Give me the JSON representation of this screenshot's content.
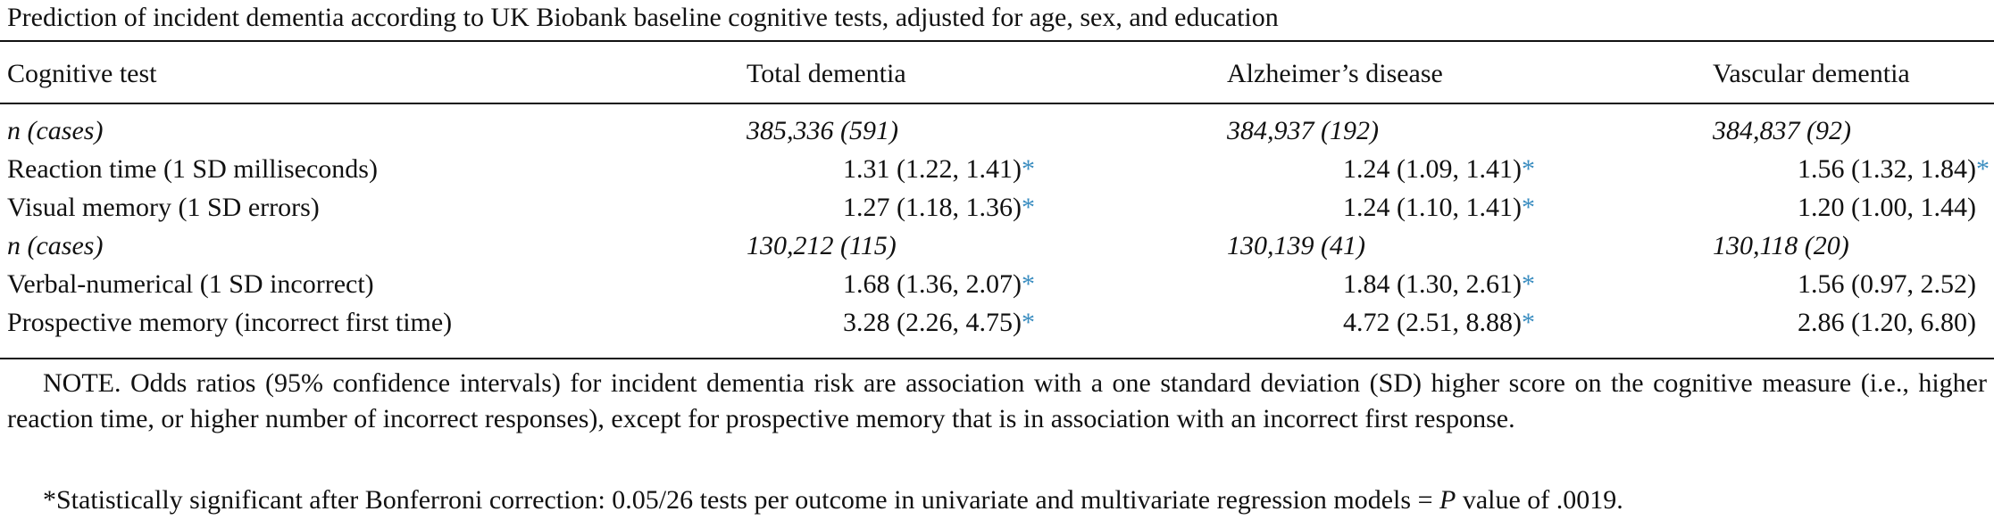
{
  "caption": "Prediction of incident dementia according to UK Biobank baseline cognitive tests, adjusted for age, sex, and education",
  "columns": {
    "test": "Cognitive test",
    "total": "Total dementia",
    "alzheimers": "Alzheimer’s disease",
    "vascular": "Vascular dementia"
  },
  "significance_marker": "*",
  "blocks": [
    {
      "n_label": "n (cases)",
      "n_total": "385,336 (591)",
      "n_alzheimers": "384,937 (192)",
      "n_vascular": "384,837 (92)",
      "rows": [
        {
          "test": "Reaction time (1 SD milliseconds)",
          "total": "1.31 (1.22, 1.41)",
          "alzheimers": "1.24 (1.09, 1.41)",
          "vascular": "1.56 (1.32, 1.84)"
        },
        {
          "test": "Visual memory (1 SD errors)",
          "total": "1.27 (1.18, 1.36)",
          "alzheimers": "1.24 (1.10, 1.41)",
          "vascular": "1.20 (1.00, 1.44)"
        }
      ]
    },
    {
      "n_label": "n (cases)",
      "n_total": "130,212 (115)",
      "n_alzheimers": "130,139 (41)",
      "n_vascular": "130,118 (20)",
      "rows": [
        {
          "test": "Verbal-numerical (1 SD incorrect)",
          "total": "1.68 (1.36, 2.07)",
          "alzheimers": "1.84 (1.30, 2.61)",
          "vascular": "1.56 (0.97, 2.52)"
        },
        {
          "test": "Prospective memory (incorrect first time)",
          "total": "3.28 (2.26, 4.75)",
          "alzheimers": "4.72 (2.51, 8.88)",
          "vascular": "2.86 (1.20, 6.80)"
        }
      ]
    }
  ],
  "note": "NOTE. Odds ratios (95% confidence intervals) for incident dementia risk are association with a one standard deviation (SD) higher score on the cognitive measure (i.e., higher reaction time, or higher number of incorrect responses), except for prospective memory that is in association with an incorrect first response.",
  "footnote_prefix": "*Statistically significant after Bonferroni correction: 0.05/26 tests per outcome in univariate and multivariate regression models = ",
  "footnote_italic": "P",
  "footnote_suffix": " value of .0019.",
  "colors": {
    "significance_marker": "#3a8dc0",
    "rules": "#111111"
  }
}
